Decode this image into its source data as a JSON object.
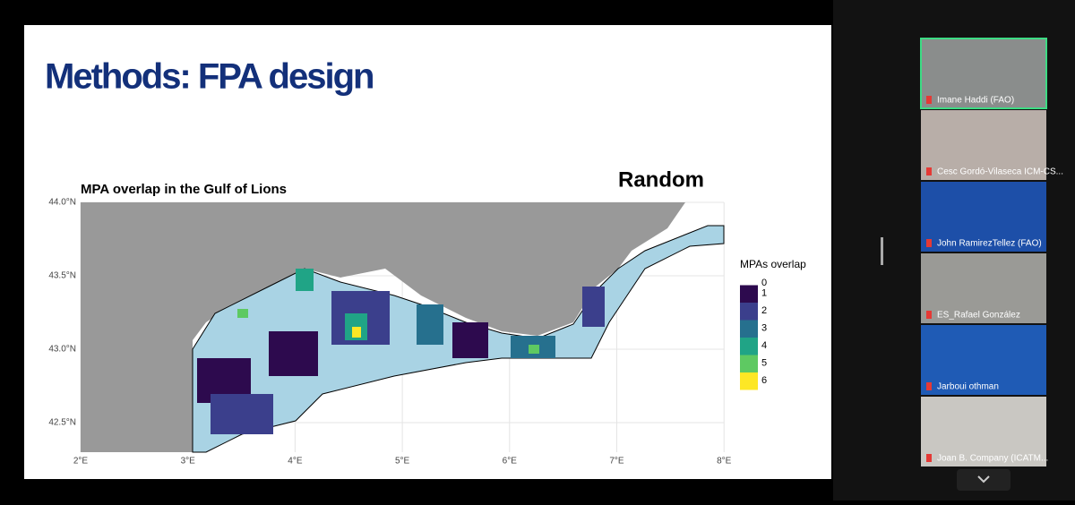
{
  "slide": {
    "title": "Methods: FPA design",
    "map": {
      "title": "MPA overlap in the Gulf of Lions",
      "annotation": "Random",
      "yticks": [
        "44.0°N",
        "43.5°N",
        "43.0°N",
        "42.5°N"
      ],
      "xticks": [
        "2°E",
        "3°E",
        "4°E",
        "5°E",
        "6°E",
        "7°E",
        "8°E"
      ],
      "legend": {
        "title": "MPAs overlap",
        "items": [
          {
            "label": 0,
            "color": "#ffffff"
          },
          {
            "label": 1,
            "color": "#2d0a4e"
          },
          {
            "label": 2,
            "color": "#3b3f8c"
          },
          {
            "label": 3,
            "color": "#26708e"
          },
          {
            "label": 4,
            "color": "#20a486"
          },
          {
            "label": 5,
            "color": "#5ec962"
          },
          {
            "label": 6,
            "color": "#fde725"
          }
        ]
      }
    }
  },
  "participants": [
    {
      "name": "Imane Haddi (FAO)",
      "bg": "#8a8d8c"
    },
    {
      "name": "Cesc Gordó-Vilaseca ICM-CS...",
      "bg": "#b8aea8"
    },
    {
      "name": "John RamirezTellez (FAO)",
      "bg": "#1d4fa8"
    },
    {
      "name": "ES_Rafael González",
      "bg": "#9a9a96"
    },
    {
      "name": "Jarboui othman",
      "bg": "#1f5bb5"
    },
    {
      "name": "Joan B. Company (ICATM...",
      "bg": "#c9c7c2"
    }
  ]
}
